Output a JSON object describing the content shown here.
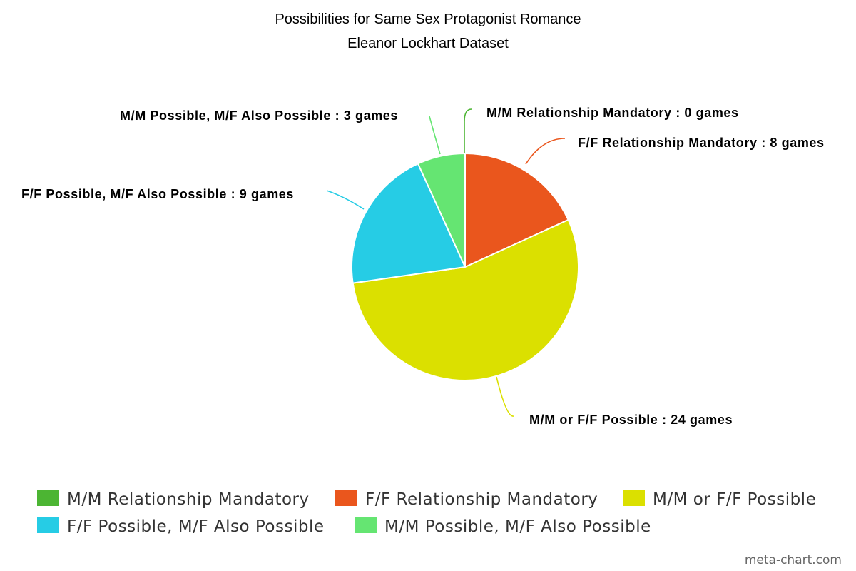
{
  "chart_data": {
    "type": "pie",
    "title": "Possibilities for Same Sex Protagonist Romance",
    "subtitle": "Eleanor Lockhart Dataset",
    "unit": "games",
    "slices": [
      {
        "label": "M/M Relationship Mandatory",
        "value": 0,
        "color": "#4cb533"
      },
      {
        "label": "F/F Relationship Mandatory",
        "value": 8,
        "color": "#ea561d"
      },
      {
        "label": "M/M or F/F Possible",
        "value": 24,
        "color": "#dbe000"
      },
      {
        "label": "F/F Possible, M/F Also Possible",
        "value": 9,
        "color": "#26cce5"
      },
      {
        "label": "M/M Possible, M/F Also Possible",
        "value": 3,
        "color": "#65e572"
      }
    ],
    "legend_position": "bottom",
    "data_label_separator": " : "
  },
  "credit": "meta-chart.com"
}
